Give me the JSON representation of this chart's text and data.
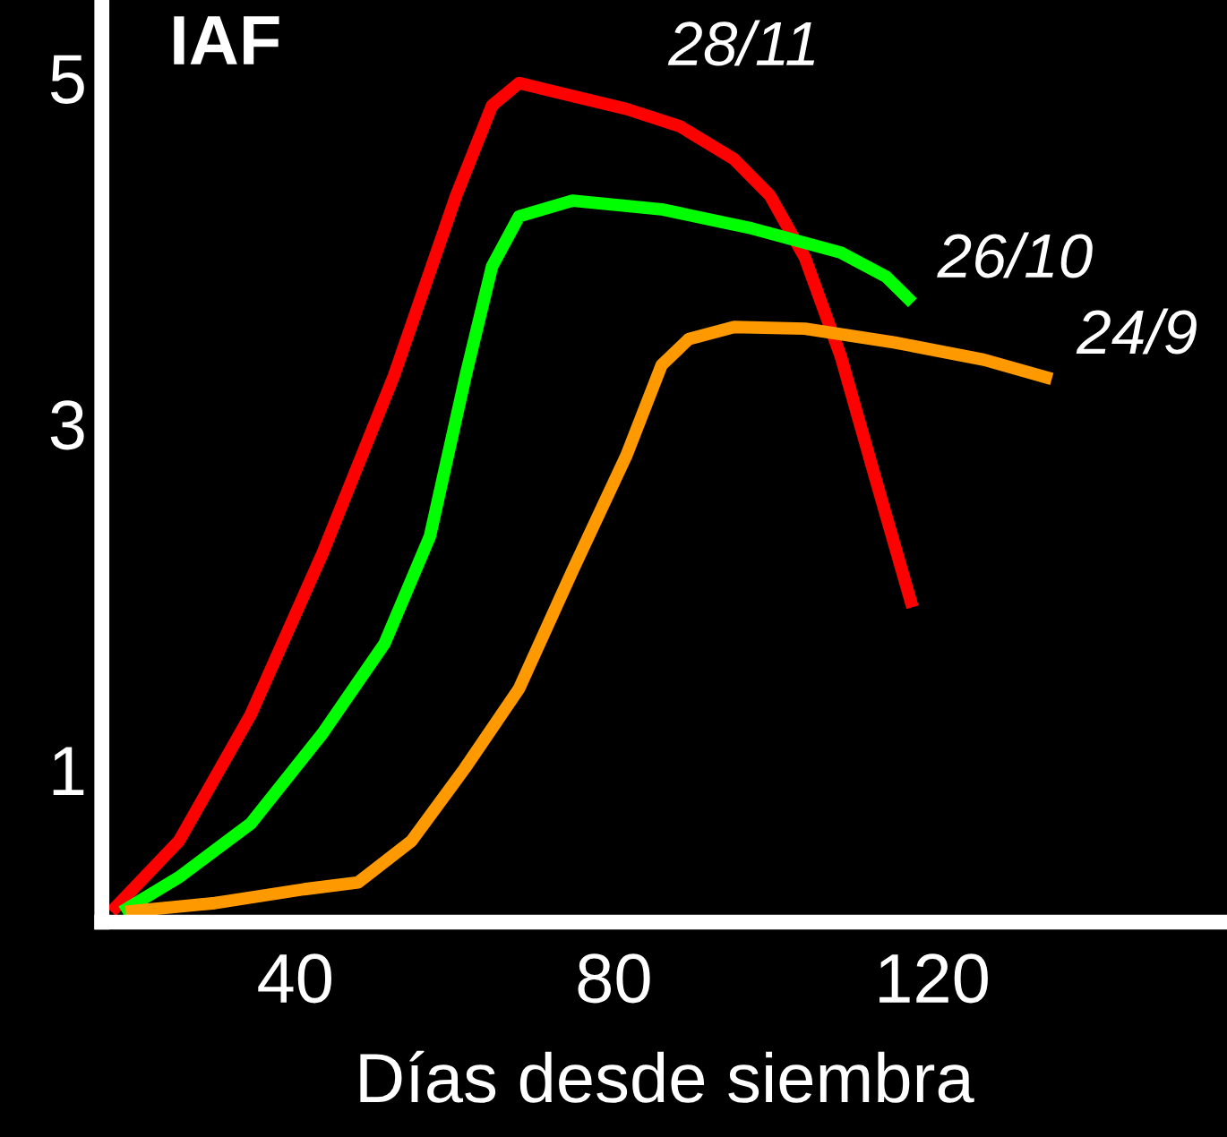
{
  "chart_data": {
    "type": "line",
    "ylabel": "IAF",
    "xlabel": "Días desde siembra",
    "xlim": [
      15.7,
      157
    ],
    "ylim": [
      0.12,
      5.45
    ],
    "xticks": [
      40,
      80,
      120
    ],
    "yticks": [
      1,
      3,
      5
    ],
    "grid": false,
    "legend": false,
    "line_style": "solid",
    "marker": "none",
    "series": [
      {
        "name": "28/11",
        "color": "#ff0000",
        "x": [
          16.9,
          25.4,
          34.4,
          43.4,
          52.4,
          60.2,
          64.7,
          68.1,
          72.6,
          81.6,
          88.3,
          95.1,
          99.6,
          104,
          108.5,
          113,
          117.5
        ],
        "values": [
          0.18,
          0.59,
          1.32,
          2.25,
          3.28,
          4.32,
          4.84,
          4.97,
          4.92,
          4.82,
          4.72,
          4.53,
          4.32,
          3.96,
          3.39,
          2.66,
          1.94
        ]
      },
      {
        "name": "26/10",
        "color": "#00ff00",
        "x": [
          18.2,
          25.4,
          34.4,
          43.4,
          51.2,
          56.9,
          61.4,
          64.7,
          68.1,
          74.8,
          86,
          97.3,
          108.5,
          114.2,
          117.5
        ],
        "values": [
          0.18,
          0.38,
          0.69,
          1.21,
          1.73,
          2.35,
          3.28,
          3.91,
          4.2,
          4.29,
          4.24,
          4.13,
          3.99,
          3.85,
          3.7
        ]
      },
      {
        "name": "24/9",
        "color": "#ff9900",
        "x": [
          18.7,
          29.9,
          41.1,
          47.9,
          54.6,
          61.3,
          68.1,
          74.8,
          81.6,
          86,
          89.4,
          95.1,
          104,
          115.3,
          126.5,
          135
        ],
        "values": [
          0.18,
          0.23,
          0.31,
          0.35,
          0.59,
          1.01,
          1.47,
          2.15,
          2.82,
          3.34,
          3.49,
          3.56,
          3.55,
          3.47,
          3.37,
          3.26
        ]
      }
    ]
  }
}
